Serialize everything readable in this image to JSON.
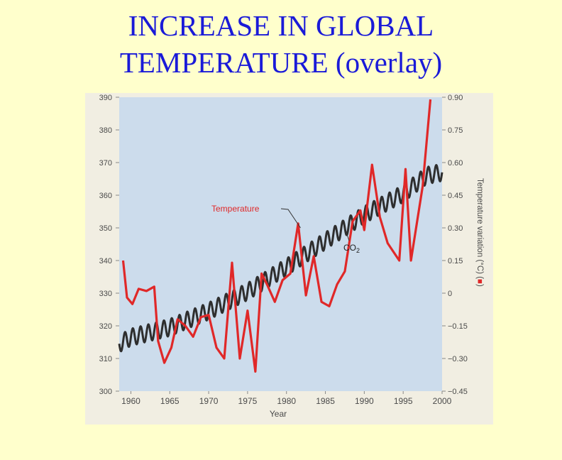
{
  "slide": {
    "title_line1": "INCREASE IN GLOBAL",
    "title_line2": "TEMPERATURE (overlay)"
  },
  "colors": {
    "background": "#ffffcc",
    "title": "#1a1ad8",
    "plot_bg": "#ccdcec",
    "figure_bg": "#f1eee2",
    "co2_line": "#2e2e2e",
    "temp_line": "#e02828",
    "axis_text": "#4a4a4a"
  },
  "chart_data": {
    "type": "line",
    "title": "",
    "xlabel": "Year",
    "ylabel_left": "",
    "ylabel_right": "Temperature variation (°C) (",
    "legend_marker": "■",
    "legend_close": ")",
    "xlim": [
      1958.5,
      2000
    ],
    "ylim_left": [
      300,
      390
    ],
    "ylim_right": [
      -0.45,
      0.9
    ],
    "x_ticks": [
      1960,
      1965,
      1970,
      1975,
      1980,
      1985,
      1990,
      1995,
      2000
    ],
    "x_tick_labels": [
      "1960",
      "1965",
      "1970",
      "1975",
      "1980",
      "1985",
      "1990",
      "1995",
      "2000"
    ],
    "y_left_ticks": [
      300,
      310,
      320,
      330,
      340,
      350,
      360,
      370,
      380,
      390
    ],
    "y_left_tick_labels": [
      "300",
      "310",
      "320",
      "330",
      "340",
      "350",
      "360",
      "370",
      "380",
      "390"
    ],
    "y_right_ticks": [
      -0.45,
      -0.3,
      -0.15,
      0,
      0.15,
      0.3,
      0.45,
      0.6,
      0.75,
      0.9
    ],
    "y_right_tick_labels": [
      "−0.45",
      "−0.30",
      "−0.15",
      "0",
      "0.15",
      "0.30",
      "0.45",
      "0.60",
      "0.75",
      "0.90"
    ],
    "annotations": [
      {
        "text": "Temperature",
        "series": "Temperature",
        "target_year": 1981.8
      },
      {
        "text": "CO",
        "subscript": "2",
        "series": "CO2",
        "target_year": 1987.5
      }
    ],
    "series": [
      {
        "name": "CO2",
        "axis": "left",
        "color": "#2e2e2e",
        "seasonal_amplitude": 2.6,
        "trend_x": [
          1958.5,
          1960,
          1965,
          1970,
          1975,
          1980,
          1985,
          1990,
          1995,
          1998,
          2000
        ],
        "trend_y": [
          314.5,
          316.5,
          319.5,
          324.5,
          330.5,
          338,
          346,
          354,
          360.5,
          366,
          367
        ]
      },
      {
        "name": "Temperature",
        "axis": "right",
        "color": "#e02828",
        "x": [
          1959,
          1959.5,
          1960.2,
          1961,
          1962,
          1963,
          1963.5,
          1964.3,
          1965.2,
          1966,
          1967,
          1968,
          1969,
          1970,
          1971,
          1972,
          1973,
          1974,
          1975,
          1976,
          1976.8,
          1977.5,
          1978.5,
          1979.5,
          1980.5,
          1981.5,
          1982.5,
          1983.5,
          1984.5,
          1985.5,
          1986.5,
          1987.5,
          1988.5,
          1989.5,
          1990,
          1991,
          1992,
          1993,
          1994.5,
          1995.3,
          1996,
          1997.5,
          1998.5
        ],
        "y": [
          0.15,
          -0.02,
          -0.05,
          0.02,
          0.01,
          0.03,
          -0.22,
          -0.32,
          -0.25,
          -0.12,
          -0.15,
          -0.2,
          -0.11,
          -0.1,
          -0.25,
          -0.3,
          0.14,
          -0.3,
          -0.08,
          -0.36,
          0.09,
          0.04,
          -0.04,
          0.06,
          0.09,
          0.32,
          -0.01,
          0.17,
          -0.04,
          -0.06,
          0.04,
          0.1,
          0.33,
          0.38,
          0.29,
          0.59,
          0.35,
          0.23,
          0.15,
          0.57,
          0.15,
          0.49,
          0.89
        ]
      }
    ]
  }
}
